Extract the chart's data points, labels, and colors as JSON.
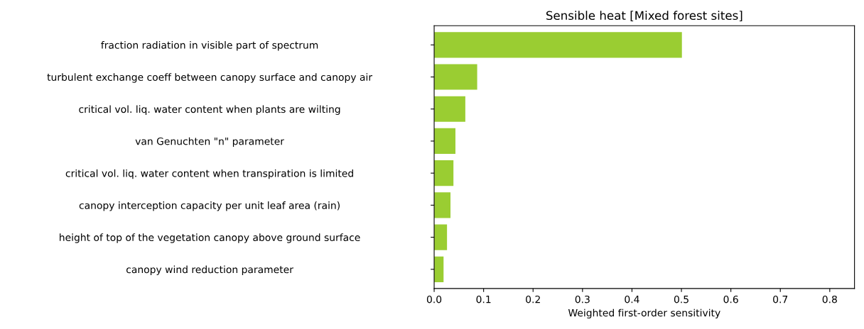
{
  "chart_data": {
    "type": "bar",
    "orientation": "horizontal",
    "title": "Sensible heat [Mixed forest sites]",
    "xlabel": "Weighted first-order sensitivity",
    "categories": [
      "fraction radiation in visible part of spectrum",
      "turbulent exchange coeff between canopy surface and canopy air",
      "critical vol. liq. water content when plants are wilting",
      "van Genuchten \"n\" parameter",
      "critical vol. liq. water content when transpiration is limited",
      "canopy interception capacity per unit leaf area (rain)",
      "height of top of the vegetation canopy above ground surface",
      "canopy wind reduction parameter"
    ],
    "values": [
      0.501,
      0.087,
      0.063,
      0.043,
      0.039,
      0.033,
      0.026,
      0.019
    ],
    "color": "#9acd32",
    "xlim": [
      0,
      0.85
    ],
    "xticks": [
      {
        "value": 0,
        "label": "0.0"
      },
      0.1,
      0.2,
      0.3,
      0.4,
      0.5,
      0.6,
      0.7,
      0.8
    ],
    "grid": false
  }
}
